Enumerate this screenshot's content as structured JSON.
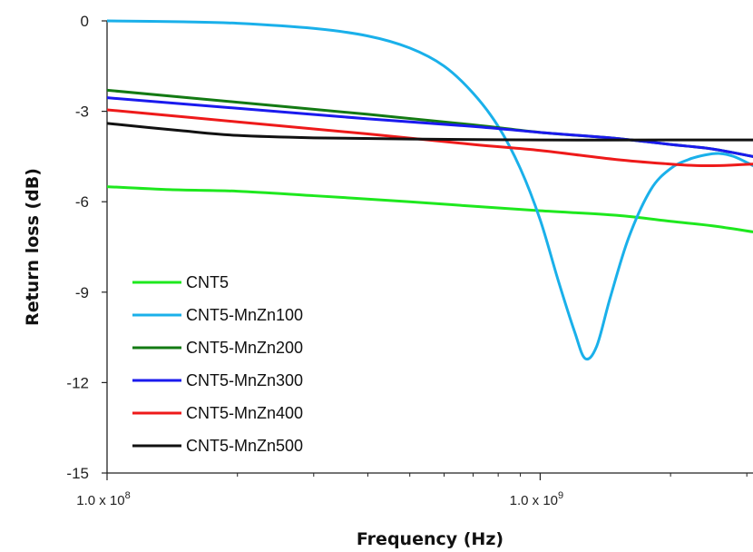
{
  "chart_data": {
    "type": "line",
    "title": "",
    "xlabel": "Frequency (Hz)",
    "ylabel": "Return loss (dB)",
    "x_scale": "log",
    "xlim": [
      100000000,
      3100000000
    ],
    "ylim": [
      -15,
      0
    ],
    "x_ticks": [
      {
        "value": 100000000,
        "mantissa": "1.0 x 10",
        "exp": "8"
      },
      {
        "value": 1000000000,
        "mantissa": "1.0 x 10",
        "exp": "9"
      }
    ],
    "y_ticks": [
      0,
      -3,
      -6,
      -9,
      -12,
      -15
    ],
    "grid": false,
    "legend_position": "bottom-left",
    "series": [
      {
        "name": "CNT5",
        "color": "#1ee81e",
        "x": [
          100000000,
          140000000,
          200000000,
          300000000,
          500000000,
          700000000,
          1000000000,
          1500000000,
          2000000000,
          2500000000,
          3100000000
        ],
        "y": [
          -5.5,
          -5.6,
          -5.65,
          -5.8,
          -6.0,
          -6.15,
          -6.3,
          -6.45,
          -6.65,
          -6.8,
          -7.0
        ]
      },
      {
        "name": "CNT5-MnZn100",
        "color": "#1ab0ea",
        "x": [
          100000000,
          150000000,
          200000000,
          300000000,
          400000000,
          500000000,
          600000000,
          700000000,
          800000000,
          900000000,
          1000000000,
          1100000000,
          1200000000,
          1270000000,
          1350000000,
          1450000000,
          1600000000,
          1800000000,
          2000000000,
          2200000000,
          2400000000,
          2600000000,
          2800000000,
          3100000000
        ],
        "y": [
          0.0,
          -0.03,
          -0.08,
          -0.25,
          -0.5,
          -0.9,
          -1.5,
          -2.4,
          -3.5,
          -4.9,
          -6.6,
          -8.6,
          -10.3,
          -11.2,
          -10.8,
          -9.2,
          -7.2,
          -5.6,
          -4.9,
          -4.6,
          -4.45,
          -4.4,
          -4.5,
          -4.8
        ]
      },
      {
        "name": "CNT5-MnZn200",
        "color": "#137a13",
        "x": [
          100000000,
          200000000,
          400000000,
          700000000,
          1000000000,
          1500000000,
          2000000000,
          2500000000,
          3100000000
        ],
        "y": [
          -2.3,
          -2.7,
          -3.1,
          -3.45,
          -3.7,
          -3.9,
          -4.1,
          -4.25,
          -4.5
        ]
      },
      {
        "name": "CNT5-MnZn300",
        "color": "#1a1aee",
        "x": [
          100000000,
          200000000,
          400000000,
          700000000,
          1000000000,
          1500000000,
          2000000000,
          2500000000,
          3100000000
        ],
        "y": [
          -2.55,
          -2.9,
          -3.25,
          -3.5,
          -3.7,
          -3.9,
          -4.1,
          -4.25,
          -4.5
        ]
      },
      {
        "name": "CNT5-MnZn400",
        "color": "#ee1a1a",
        "x": [
          100000000,
          200000000,
          400000000,
          700000000,
          1000000000,
          1500000000,
          2000000000,
          2300000000,
          2600000000,
          2800000000,
          3100000000
        ],
        "y": [
          -2.95,
          -3.35,
          -3.75,
          -4.1,
          -4.3,
          -4.6,
          -4.75,
          -4.8,
          -4.8,
          -4.78,
          -4.75
        ]
      },
      {
        "name": "CNT5-MnZn500",
        "color": "#111111",
        "x": [
          100000000,
          150000000,
          200000000,
          300000000,
          500000000,
          1000000000,
          2000000000,
          3100000000
        ],
        "y": [
          -3.4,
          -3.65,
          -3.8,
          -3.88,
          -3.92,
          -3.95,
          -3.95,
          -3.95
        ]
      }
    ]
  }
}
